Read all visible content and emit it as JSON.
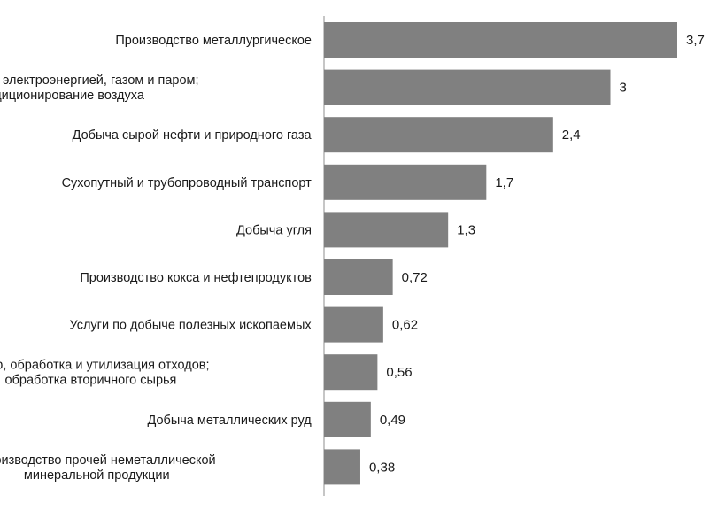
{
  "chart_data": {
    "type": "bar",
    "orientation": "horizontal",
    "categories": [
      [
        "Производство металлургическое"
      ],
      [
        "Обеспечение электроэнергией, газом и паром;",
        "кондиционирование воздуха"
      ],
      [
        "Добыча сырой нефти и природного газа"
      ],
      [
        "Сухопутный и трубопроводный транспорт"
      ],
      [
        "Добыча угля"
      ],
      [
        "Производство кокса и нефтепродуктов"
      ],
      [
        "Услуги по добыче полезных ископаемых"
      ],
      [
        "Сбор, обработка и утилизация отходов;",
        "обработка вторичного сырья"
      ],
      [
        "Добыча металлических руд"
      ],
      [
        "Производство прочей неметаллической",
        "минеральной продукции"
      ]
    ],
    "values": [
      3.7,
      3,
      2.4,
      1.7,
      1.3,
      0.72,
      0.62,
      0.56,
      0.49,
      0.38
    ],
    "value_labels": [
      "3,7",
      "3",
      "2,4",
      "1,7",
      "1,3",
      "0,72",
      "0,62",
      "0,56",
      "0,49",
      "0,38"
    ],
    "bar_color": "#808080",
    "xlim": [
      0,
      3.7
    ],
    "grid": false,
    "legend": "none"
  }
}
